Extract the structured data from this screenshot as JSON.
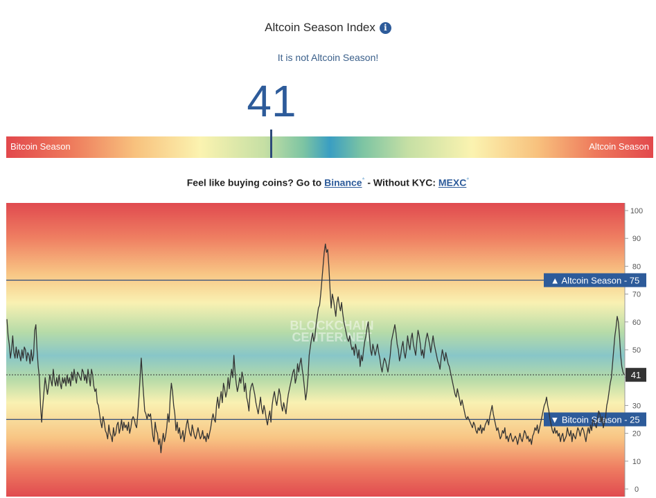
{
  "header": {
    "title": "Altcoin Season Index",
    "info_icon": "info-icon",
    "status": "It is not Altcoin Season!",
    "value": "41"
  },
  "gauge": {
    "value": 41,
    "left_label": "Bitcoin Season",
    "right_label": "Altcoin Season"
  },
  "promo": {
    "prefix": "Feel like buying coins? Go to",
    "link1": "Binance",
    "star1": "*",
    "middle": "- Without KYC:",
    "link2": "MEXC",
    "star2": "*"
  },
  "chart_data": {
    "type": "line",
    "ylim": [
      0,
      100
    ],
    "yticks": [
      "0",
      "10",
      "20",
      "30",
      "40",
      "50",
      "60",
      "70",
      "80",
      "90",
      "100"
    ],
    "watermark": [
      "BLOCKCHAIN",
      "CENTER.NET"
    ],
    "thresholds": [
      {
        "label": "▲ Altcoin Season - 75",
        "value": 75
      },
      {
        "label": "▼ Bitcoin Season - 25",
        "value": 25
      }
    ],
    "current": {
      "label": "41",
      "value": 41
    },
    "series": [
      {
        "values": [
          61,
          55,
          52,
          47,
          50,
          55,
          49,
          47,
          51,
          47,
          50,
          48,
          46,
          50,
          47,
          51,
          50,
          46,
          49,
          48,
          45,
          50,
          46,
          48,
          57,
          59,
          50,
          44,
          40,
          30,
          24,
          30,
          35,
          40,
          37,
          34,
          37,
          41,
          39,
          37,
          43,
          39,
          37,
          40,
          37,
          41,
          38,
          36,
          40,
          38,
          40,
          37,
          41,
          38,
          40,
          37,
          42,
          39,
          43,
          40,
          38,
          42,
          41,
          40,
          39,
          43,
          42,
          39,
          41,
          38,
          43,
          40,
          37,
          43,
          41,
          37,
          35,
          36,
          31,
          30,
          27,
          24,
          22,
          26,
          24,
          21,
          20,
          18,
          23,
          20,
          19,
          17,
          22,
          19,
          20,
          23,
          24,
          20,
          22,
          25,
          21,
          24,
          22,
          23,
          21,
          24,
          20,
          22,
          25,
          26,
          25,
          23,
          22,
          27,
          33,
          40,
          47,
          40,
          34,
          28,
          27,
          25,
          27,
          26,
          27,
          23,
          19,
          17,
          24,
          21,
          20,
          16,
          18,
          13,
          17,
          20,
          17,
          19,
          22,
          27,
          24,
          33,
          38,
          35,
          30,
          27,
          21,
          24,
          20,
          22,
          18,
          19,
          21,
          17,
          20,
          23,
          25,
          22,
          20,
          19,
          23,
          21,
          19,
          18,
          20,
          22,
          20,
          18,
          19,
          21,
          18,
          19,
          17,
          20,
          18,
          20,
          22,
          25,
          27,
          25,
          24,
          30,
          33,
          29,
          32,
          35,
          31,
          38,
          36,
          33,
          35,
          40,
          36,
          40,
          43,
          40,
          48,
          42,
          38,
          35,
          37,
          40,
          38,
          42,
          40,
          35,
          38,
          33,
          31,
          28,
          35,
          37,
          38,
          36,
          34,
          31,
          29,
          27,
          30,
          33,
          29,
          27,
          30,
          28,
          25,
          23,
          26,
          28,
          24,
          30,
          33,
          35,
          32,
          30,
          33,
          36,
          34,
          30,
          28,
          31,
          29,
          27,
          31,
          34,
          36,
          38,
          40,
          42,
          43,
          38,
          40,
          45,
          42,
          45,
          47,
          43,
          40,
          36,
          32,
          35,
          40,
          48,
          51,
          54,
          56,
          53,
          55,
          59,
          62,
          65,
          66,
          70,
          75,
          80,
          85,
          88,
          85,
          86,
          80,
          72,
          65,
          70,
          68,
          65,
          62,
          67,
          69,
          66,
          64,
          67,
          63,
          60,
          58,
          56,
          54,
          53,
          55,
          52,
          50,
          51,
          48,
          52,
          50,
          47,
          50,
          44,
          48,
          46,
          50,
          53,
          55,
          58,
          60,
          55,
          50,
          48,
          52,
          50,
          48,
          50,
          52,
          49,
          47,
          44,
          42,
          45,
          47,
          46,
          44,
          42,
          45,
          48,
          53,
          55,
          57,
          59,
          56,
          52,
          50,
          46,
          48,
          51,
          53,
          49,
          47,
          50,
          55,
          52,
          50,
          54,
          56,
          52,
          50,
          48,
          53,
          57,
          55,
          52,
          48,
          50,
          47,
          51,
          54,
          56,
          54,
          52,
          49,
          52,
          55,
          52,
          50,
          48,
          46,
          45,
          43,
          47,
          50,
          48,
          46,
          49,
          47,
          45,
          44,
          42,
          40,
          38,
          36,
          34,
          33,
          36,
          34,
          32,
          30,
          32,
          30,
          28,
          26,
          25,
          26,
          25,
          24,
          23,
          22,
          24,
          23,
          21,
          20,
          22,
          21,
          23,
          20,
          22,
          21,
          23,
          24,
          25,
          23,
          26,
          28,
          30,
          27,
          25,
          23,
          21,
          22,
          20,
          18,
          19,
          21,
          20,
          22,
          18,
          19,
          17,
          19,
          20,
          18,
          17,
          18,
          19,
          18,
          16,
          18,
          20,
          18,
          17,
          19,
          21,
          20,
          18,
          19,
          17,
          18,
          16,
          19,
          20,
          22,
          21,
          23,
          20,
          22,
          24,
          26,
          28,
          30,
          31,
          33,
          30,
          28,
          25,
          23,
          21,
          20,
          22,
          20,
          21,
          19,
          20,
          17,
          19,
          20,
          17,
          18,
          19,
          22,
          20,
          19,
          21,
          17,
          20,
          19,
          18,
          20,
          22,
          21,
          19,
          21,
          22,
          21,
          19,
          17,
          20,
          22,
          20,
          23,
          21,
          25,
          24,
          23,
          22,
          25,
          28,
          27,
          24,
          26,
          22,
          24,
          26,
          30,
          32,
          35,
          38,
          40,
          45,
          50,
          55,
          58,
          62,
          60,
          55,
          48,
          44,
          42,
          41
        ]
      }
    ]
  }
}
